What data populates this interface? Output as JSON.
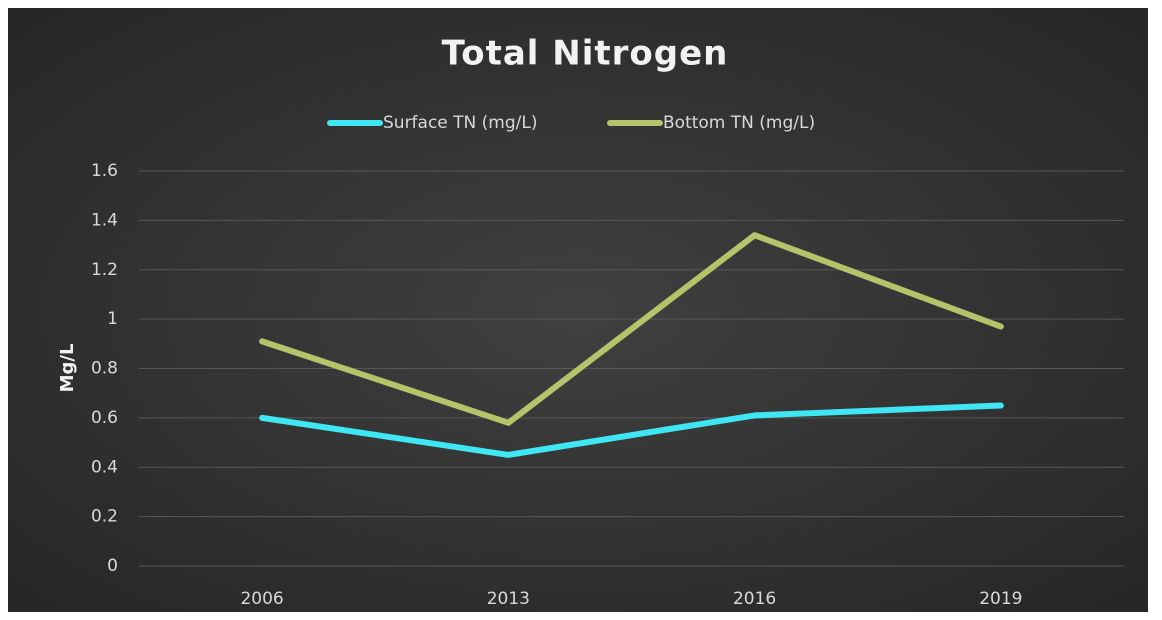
{
  "chart_data": {
    "type": "line",
    "title": "Total Nitrogen",
    "y_label": "Mg/L",
    "categories": [
      "2006",
      "2013",
      "2016",
      "2019"
    ],
    "series": [
      {
        "name": "Surface TN (mg/L)",
        "color": "#3fe6f4",
        "values": [
          0.6,
          0.45,
          0.61,
          0.65
        ]
      },
      {
        "name": "Bottom TN (mg/L)",
        "color": "#b4c46a",
        "values": [
          0.91,
          0.58,
          1.34,
          0.97
        ]
      }
    ],
    "ylim": [
      0,
      1.6
    ],
    "yticks": [
      0,
      0.2,
      0.4,
      0.6,
      0.8,
      1,
      1.2,
      1.4,
      1.6
    ],
    "grid": true,
    "legend": "top"
  }
}
